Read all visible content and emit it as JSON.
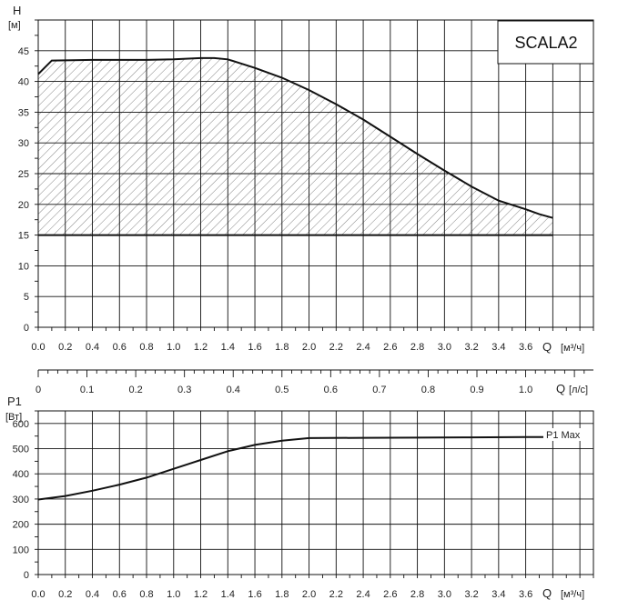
{
  "chart_data": [
    {
      "type": "area",
      "title": "SCALA2",
      "ylabel": "H",
      "yunit": "[м]",
      "xlabel": "Q",
      "xunit": "[м³/ч]",
      "xlim": [
        0,
        4.1
      ],
      "ylim": [
        0,
        50
      ],
      "x_ticks": [
        "0.0",
        "0.2",
        "0.4",
        "0.6",
        "0.8",
        "1.0",
        "1.2",
        "1.4",
        "1.6",
        "1.8",
        "2.0",
        "2.2",
        "2.4",
        "2.6",
        "2.8",
        "3.0",
        "3.2",
        "3.4",
        "3.6"
      ],
      "y_ticks": [
        "0",
        "5",
        "10",
        "15",
        "20",
        "25",
        "30",
        "35",
        "40",
        "45"
      ],
      "grid": true,
      "hatched_region": true,
      "series": [
        {
          "x": [
            0.0,
            0.1,
            0.4,
            0.8,
            1.0,
            1.2,
            1.3,
            1.4,
            1.6,
            1.8,
            2.0,
            2.2,
            2.4,
            2.6,
            2.8,
            3.0,
            3.2,
            3.4,
            3.6,
            3.7,
            3.8
          ],
          "values": [
            41.2,
            43.4,
            43.5,
            43.5,
            43.6,
            43.8,
            43.8,
            43.6,
            42.2,
            40.6,
            38.6,
            36.3,
            33.8,
            31.0,
            28.2,
            25.5,
            22.9,
            20.6,
            19.2,
            18.4,
            17.8
          ]
        },
        {
          "x": [
            0.0,
            3.8
          ],
          "values": [
            15.0,
            15.0
          ]
        }
      ]
    },
    {
      "type": "line",
      "xlabel": "Q",
      "xunit": "[л/с]",
      "xlim": [
        0,
        1.139
      ],
      "x_ticks": [
        "0",
        "0.1",
        "0.2",
        "0.3",
        "0.4",
        "0.5",
        "0.6",
        "0.7",
        "0.8",
        "0.9",
        "1.0"
      ]
    },
    {
      "type": "line",
      "ylabel": "P1",
      "yunit": "[Вт]",
      "xlabel": "Q",
      "xunit": "[м³/ч]",
      "xlim": [
        0,
        4.1
      ],
      "ylim": [
        0,
        650
      ],
      "x_ticks": [
        "0.0",
        "0.2",
        "0.4",
        "0.6",
        "0.8",
        "1.0",
        "1.2",
        "1.4",
        "1.6",
        "1.8",
        "2.0",
        "2.2",
        "2.4",
        "2.6",
        "2.8",
        "3.0",
        "3.2",
        "3.4",
        "3.6"
      ],
      "y_ticks": [
        "0",
        "100",
        "200",
        "300",
        "400",
        "500",
        "600"
      ],
      "grid": true,
      "series": [
        {
          "name": "P1 Max",
          "x": [
            0.0,
            0.2,
            0.4,
            0.6,
            0.8,
            1.0,
            1.2,
            1.4,
            1.6,
            1.8,
            2.0,
            2.4,
            2.8,
            3.2,
            3.6,
            3.8
          ],
          "values": [
            298,
            312,
            333,
            357,
            385,
            420,
            455,
            490,
            515,
            532,
            542,
            543,
            544,
            545,
            546,
            546
          ]
        }
      ]
    }
  ]
}
